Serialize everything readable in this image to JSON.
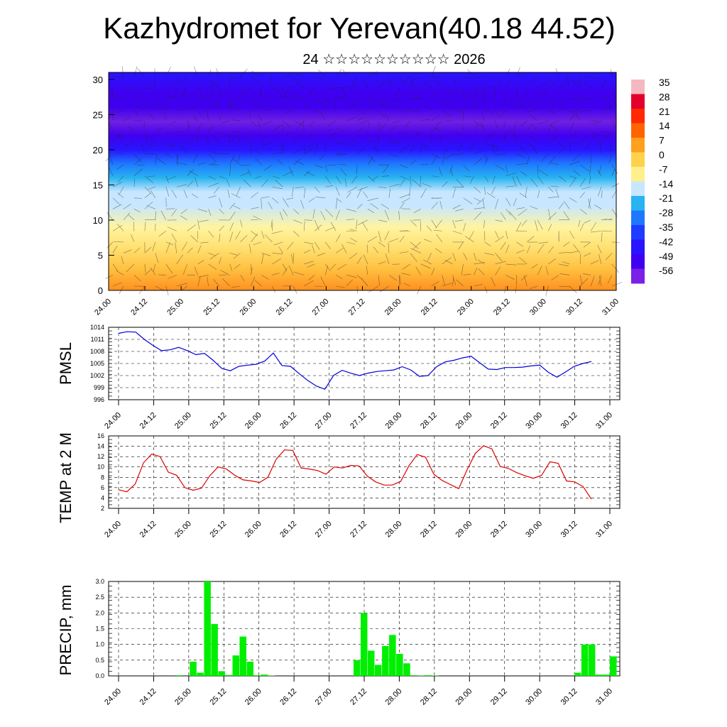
{
  "title": "Kazhydromet for Yerevan(40.18 44.52)",
  "subtitle": "24 ☆☆☆☆☆☆☆☆☆☆ 2026",
  "time_labels": [
    "24.00",
    "24.12",
    "25.00",
    "25.12",
    "26.00",
    "26.12",
    "27.00",
    "27.12",
    "28.00",
    "28.12",
    "29.00",
    "29.12",
    "30.00",
    "30.12",
    "31.00"
  ],
  "colors": {
    "pmsl": "#0000dd",
    "temp": "#dd0000",
    "precip": "#00ee00",
    "axis": "#000000"
  },
  "chart_data": [
    {
      "id": "cross-section",
      "type": "heatmap",
      "description_label": "",
      "y_ticks": [
        0,
        5,
        10,
        15,
        20,
        25,
        30
      ],
      "ylim": [
        0,
        31
      ],
      "colorbar_labels": [
        "35",
        "28",
        "21",
        "14",
        "7",
        "0",
        "-7",
        "-14",
        "-21",
        "-28",
        "-35",
        "-42",
        "-49",
        "-56"
      ],
      "colorbar_colors": [
        "#f4b8c0",
        "#e3002a",
        "#ff2800",
        "#ff6400",
        "#ffa01e",
        "#ffd24b",
        "#fff08c",
        "#c8e6ff",
        "#28b4f0",
        "#1e78ff",
        "#1e3cff",
        "#2814ff",
        "#4000f0",
        "#7a20e8"
      ],
      "profile_temps": [
        {
          "z": 0,
          "t": 18
        },
        {
          "z": 3,
          "t": 12
        },
        {
          "z": 6,
          "t": 6
        },
        {
          "z": 9,
          "t": 0
        },
        {
          "z": 12,
          "t": -7
        },
        {
          "z": 14,
          "t": -12
        },
        {
          "z": 16,
          "t": -22
        },
        {
          "z": 18,
          "t": -32
        },
        {
          "z": 20,
          "t": -42
        },
        {
          "z": 22,
          "t": -52
        },
        {
          "z": 24,
          "t": -58
        },
        {
          "z": 26,
          "t": -54
        },
        {
          "z": 28,
          "t": -50
        },
        {
          "z": 31,
          "t": -48
        }
      ]
    },
    {
      "id": "pmsl",
      "type": "line",
      "ylabel": "PMSL",
      "y_ticks": [
        996,
        999,
        1002,
        1005,
        1008,
        1011,
        1014
      ],
      "ylim": [
        996,
        1014
      ],
      "series": [
        {
          "name": "PMSL",
          "values": [
            1012.5,
            1012.9,
            1012.8,
            1011,
            1009.5,
            1008.2,
            1008.4,
            1009,
            1008.2,
            1007.2,
            1007.5,
            1005.8,
            1003.8,
            1003.2,
            1004.3,
            1004.6,
            1004.8,
            1005.6,
            1007.6,
            1004.5,
            1004.3,
            1002.5,
            1000.8,
            999.4,
            998.6,
            1002,
            1003.3,
            1002.6,
            1002,
            1002.6,
            1003,
            1003.2,
            1003.4,
            1004.2,
            1003.4,
            1001.8,
            1002,
            1004.2,
            1005.4,
            1005.8,
            1006.4,
            1006.8,
            1005.2,
            1003.6,
            1003.5,
            1004,
            1004,
            1004.1,
            1004.4,
            1004.6,
            1002.8,
            1001.6,
            1002.9,
            1004.3,
            1005,
            1005.5
          ]
        }
      ]
    },
    {
      "id": "temp",
      "type": "line",
      "ylabel": "TEMP at 2 M",
      "y_ticks": [
        2,
        4,
        6,
        8,
        10,
        12,
        14,
        16
      ],
      "ylim": [
        2,
        16
      ],
      "series": [
        {
          "name": "TEMP at 2 M",
          "values": [
            5.6,
            5.2,
            6.7,
            10.8,
            12.5,
            12,
            9,
            8.4,
            6,
            5.5,
            5.9,
            8.3,
            10,
            9.6,
            8.4,
            7.5,
            7.3,
            7,
            8,
            11.5,
            13.3,
            13.2,
            9.8,
            9.6,
            9.3,
            8.6,
            10,
            9.8,
            10.3,
            10.2,
            8.2,
            7.1,
            6.5,
            6.5,
            7.2,
            10.2,
            12.4,
            11.9,
            8.6,
            7.4,
            6.6,
            5.8,
            9.4,
            12.6,
            14.1,
            13.5,
            10.1,
            9.7,
            8.9,
            8.3,
            7.8,
            8.4,
            11,
            10.7,
            7.3,
            7.1,
            6.2,
            3.8
          ]
        }
      ]
    },
    {
      "id": "precip",
      "type": "bar",
      "ylabel": "PRECIP, mm",
      "y_ticks": [
        "0.0",
        "0.5",
        "1.0",
        "1.5",
        "2.0",
        "2.5",
        "3.0"
      ],
      "ylim": [
        0,
        3
      ],
      "values": [
        0,
        0,
        0,
        0,
        0,
        0,
        0,
        0,
        0,
        0.02,
        0,
        0.45,
        0.1,
        3,
        1.65,
        0.15,
        0.03,
        0.65,
        1.25,
        0.45,
        0.02,
        0.04,
        0.01,
        0,
        0,
        0,
        0,
        0,
        0,
        0,
        0,
        0,
        0,
        0,
        0.5,
        2,
        0.8,
        0.35,
        0.95,
        1.3,
        0.7,
        0.4,
        0.02,
        0.01,
        0.02,
        0.01,
        0,
        0,
        0,
        0,
        0,
        0,
        0,
        0,
        0,
        0,
        0,
        0,
        0,
        0,
        0,
        0,
        0,
        0,
        0,
        0.1,
        1,
        1,
        0.04,
        0.04,
        0.62
      ]
    }
  ]
}
